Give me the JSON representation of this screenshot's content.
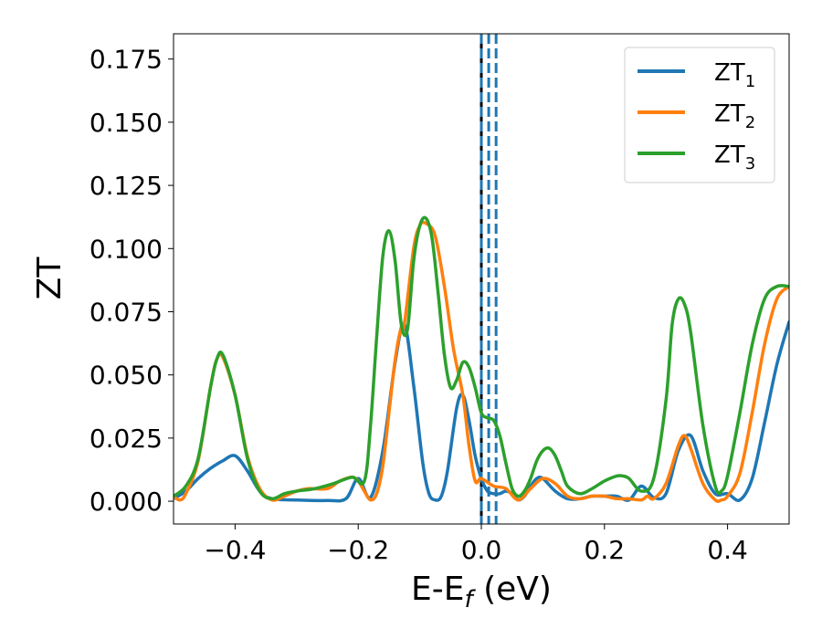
{
  "chart_data": {
    "type": "line",
    "xlabel": "E-E",
    "xlabel_sub": "f",
    "xlabel_unit": " (eV)",
    "ylabel": "ZT",
    "xlim": [
      -0.5,
      0.5
    ],
    "ylim": [
      -0.009,
      0.185
    ],
    "xticks": [
      -0.4,
      -0.2,
      0.0,
      0.2,
      0.4
    ],
    "xtick_labels": [
      "−0.4",
      "−0.2",
      "0.0",
      "0.2",
      "0.4"
    ],
    "yticks": [
      0.0,
      0.025,
      0.05,
      0.075,
      0.1,
      0.125,
      0.15,
      0.175
    ],
    "ytick_labels": [
      "0.000",
      "0.025",
      "0.050",
      "0.075",
      "0.100",
      "0.125",
      "0.150",
      "0.175"
    ],
    "grid": false,
    "legend_position": "top-right",
    "series": [
      {
        "name": "ZT",
        "name_sub": "1",
        "color": "#1f77b4",
        "x": [
          -0.5,
          -0.48,
          -0.46,
          -0.44,
          -0.42,
          -0.4,
          -0.38,
          -0.36,
          -0.34,
          -0.3,
          -0.25,
          -0.22,
          -0.2,
          -0.18,
          -0.16,
          -0.14,
          -0.125,
          -0.11,
          -0.095,
          -0.085,
          -0.075,
          -0.065,
          -0.055,
          -0.04,
          -0.03,
          -0.02,
          -0.01,
          0.0,
          0.01,
          0.02,
          0.03,
          0.04,
          0.05,
          0.06,
          0.07,
          0.08,
          0.09,
          0.1,
          0.12,
          0.14,
          0.16,
          0.18,
          0.2,
          0.22,
          0.24,
          0.26,
          0.28,
          0.3,
          0.32,
          0.34,
          0.36,
          0.38,
          0.4,
          0.42,
          0.44,
          0.46,
          0.48,
          0.5
        ],
        "y": [
          0.001,
          0.004,
          0.009,
          0.013,
          0.016,
          0.018,
          0.012,
          0.004,
          0.001,
          0.0005,
          0.0003,
          0.001,
          0.009,
          0.0015,
          0.02,
          0.055,
          0.07,
          0.046,
          0.015,
          0.003,
          0.0005,
          0.002,
          0.012,
          0.037,
          0.042,
          0.032,
          0.018,
          0.009,
          0.004,
          0.003,
          0.003,
          0.004,
          0.003,
          0.0005,
          0.002,
          0.006,
          0.009,
          0.009,
          0.004,
          0.001,
          0.001,
          0.002,
          0.002,
          0.002,
          0.0005,
          0.006,
          0.0015,
          0.003,
          0.02,
          0.026,
          0.012,
          0.003,
          0.003,
          0.0005,
          0.009,
          0.031,
          0.054,
          0.071
        ]
      },
      {
        "name": "ZT",
        "name_sub": "2",
        "color": "#ff7f0e",
        "x": [
          -0.5,
          -0.49,
          -0.48,
          -0.46,
          -0.44,
          -0.43,
          -0.42,
          -0.4,
          -0.38,
          -0.36,
          -0.34,
          -0.32,
          -0.3,
          -0.28,
          -0.25,
          -0.23,
          -0.21,
          -0.2,
          -0.19,
          -0.18,
          -0.17,
          -0.16,
          -0.15,
          -0.14,
          -0.13,
          -0.125,
          -0.11,
          -0.1,
          -0.09,
          -0.075,
          -0.06,
          -0.045,
          -0.03,
          -0.02,
          -0.01,
          0.0,
          0.02,
          0.04,
          0.06,
          0.08,
          0.1,
          0.12,
          0.14,
          0.16,
          0.18,
          0.2,
          0.22,
          0.24,
          0.26,
          0.27,
          0.28,
          0.3,
          0.32,
          0.33,
          0.34,
          0.36,
          0.38,
          0.39,
          0.4,
          0.42,
          0.44,
          0.46,
          0.48,
          0.5
        ],
        "y": [
          0.002,
          0.0005,
          0.003,
          0.016,
          0.045,
          0.056,
          0.057,
          0.042,
          0.018,
          0.005,
          0.0005,
          0.002,
          0.004,
          0.005,
          0.005,
          0.008,
          0.0095,
          0.008,
          0.004,
          0.0005,
          0.003,
          0.014,
          0.035,
          0.056,
          0.069,
          0.07,
          0.1,
          0.109,
          0.11,
          0.105,
          0.085,
          0.06,
          0.042,
          0.022,
          0.008,
          0.009,
          0.006,
          0.005,
          0.0005,
          0.005,
          0.009,
          0.007,
          0.002,
          0.001,
          0.002,
          0.002,
          0.001,
          0.001,
          0.0005,
          0.002,
          0.001,
          0.007,
          0.022,
          0.026,
          0.021,
          0.007,
          0.0005,
          0.0005,
          0.002,
          0.011,
          0.035,
          0.062,
          0.08,
          0.085
        ]
      },
      {
        "name": "ZT",
        "name_sub": "3",
        "color": "#2ca02c",
        "x": [
          -0.5,
          -0.48,
          -0.46,
          -0.44,
          -0.43,
          -0.42,
          -0.4,
          -0.38,
          -0.36,
          -0.34,
          -0.32,
          -0.3,
          -0.27,
          -0.24,
          -0.21,
          -0.19,
          -0.18,
          -0.17,
          -0.16,
          -0.15,
          -0.14,
          -0.13,
          -0.12,
          -0.11,
          -0.1,
          -0.09,
          -0.08,
          -0.07,
          -0.06,
          -0.05,
          -0.04,
          -0.03,
          -0.02,
          -0.01,
          0.0,
          0.01,
          0.02,
          0.03,
          0.04,
          0.05,
          0.06,
          0.07,
          0.08,
          0.09,
          0.1,
          0.11,
          0.12,
          0.13,
          0.14,
          0.16,
          0.18,
          0.2,
          0.22,
          0.23,
          0.24,
          0.26,
          0.28,
          0.3,
          0.31,
          0.32,
          0.33,
          0.34,
          0.36,
          0.38,
          0.39,
          0.4,
          0.42,
          0.44,
          0.46,
          0.48,
          0.5
        ],
        "y": [
          0.002,
          0.006,
          0.017,
          0.045,
          0.056,
          0.058,
          0.042,
          0.017,
          0.004,
          0.001,
          0.003,
          0.004,
          0.005,
          0.007,
          0.0095,
          0.008,
          0.03,
          0.065,
          0.097,
          0.107,
          0.095,
          0.07,
          0.068,
          0.095,
          0.109,
          0.112,
          0.104,
          0.082,
          0.058,
          0.045,
          0.048,
          0.055,
          0.053,
          0.045,
          0.035,
          0.033,
          0.032,
          0.026,
          0.015,
          0.005,
          0.002,
          0.004,
          0.009,
          0.016,
          0.02,
          0.021,
          0.018,
          0.012,
          0.006,
          0.003,
          0.005,
          0.008,
          0.01,
          0.01,
          0.009,
          0.004,
          0.009,
          0.04,
          0.07,
          0.08,
          0.078,
          0.067,
          0.03,
          0.006,
          0.004,
          0.01,
          0.035,
          0.062,
          0.08,
          0.085,
          0.085
        ]
      }
    ],
    "vlines": [
      {
        "x": 0.0,
        "color": "#000000",
        "style": "solid"
      },
      {
        "x": 0.0,
        "color": "#1f77b4",
        "style": "dashed"
      },
      {
        "x": 0.012,
        "color": "#1f77b4",
        "style": "dashed"
      },
      {
        "x": 0.024,
        "color": "#1f77b4",
        "style": "dashed"
      }
    ]
  }
}
